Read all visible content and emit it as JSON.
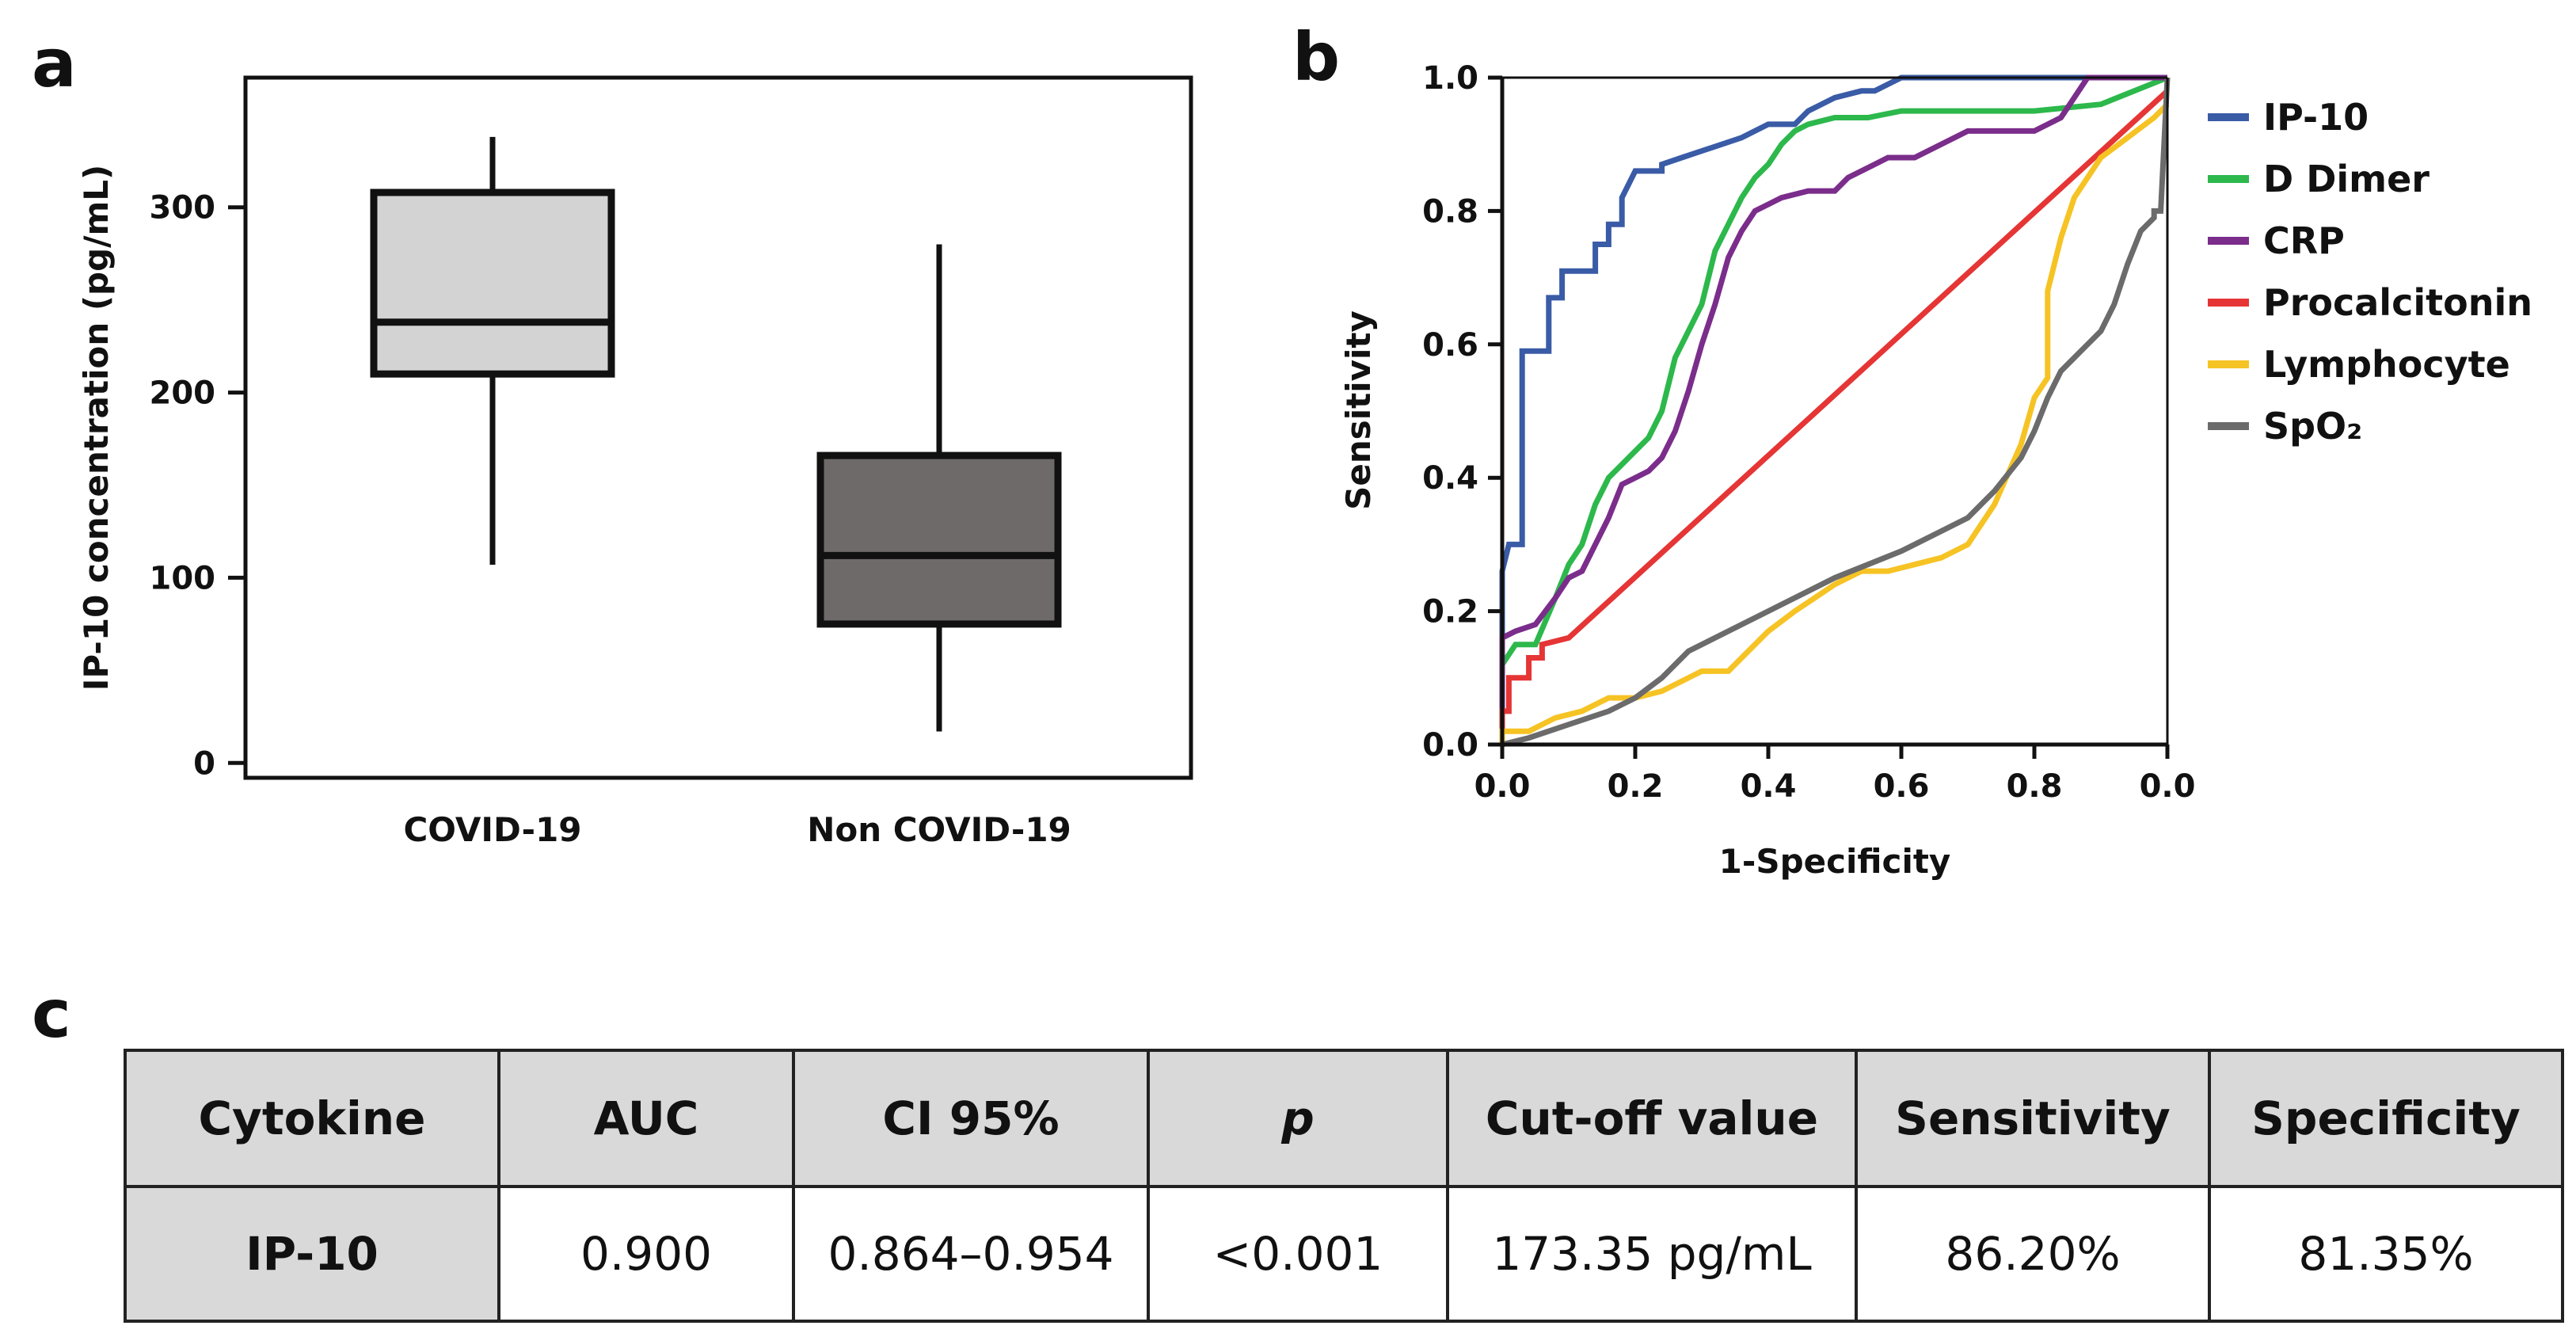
{
  "panels": {
    "a": "a",
    "b": "b",
    "c": "c"
  },
  "chart_data": [
    {
      "id": "a",
      "type": "box",
      "title": "",
      "xlabel": "",
      "ylabel": "IP-10 concentration (pg/mL)",
      "ylim": [
        -8,
        370
      ],
      "yticks": [
        0,
        100,
        200,
        300
      ],
      "categories": [
        "COVID-19",
        "Non COVID-19"
      ],
      "boxes": [
        {
          "name": "COVID-19",
          "whisker_low": 107,
          "q1": 210,
          "median": 238,
          "q3": 308,
          "whisker_high": 338,
          "color": "#d3d3d3"
        },
        {
          "name": "Non COVID-19",
          "whisker_low": 17,
          "q1": 75,
          "median": 112,
          "q3": 166,
          "whisker_high": 280,
          "color": "#6f6a6a"
        }
      ]
    },
    {
      "id": "b",
      "type": "line",
      "title": "",
      "xlabel": "1-Specificity",
      "ylabel": "Sensitivity",
      "xlim": [
        0,
        1
      ],
      "ylim": [
        0,
        1
      ],
      "xtick_labels": [
        "0.0",
        "0.2",
        "0.4",
        "0.6",
        "0.8",
        "0.0"
      ],
      "ytick_labels": [
        "0.0",
        "0.2",
        "0.4",
        "0.6",
        "0.8",
        "1.0"
      ],
      "legend_position": "right",
      "series": [
        {
          "name": "IP-10",
          "color": "#3a5ba6",
          "x": [
            0.0,
            0.0,
            0.01,
            0.03,
            0.03,
            0.07,
            0.07,
            0.09,
            0.09,
            0.12,
            0.14,
            0.14,
            0.16,
            0.16,
            0.18,
            0.18,
            0.2,
            0.24,
            0.24,
            0.27,
            0.3,
            0.36,
            0.4,
            0.44,
            0.46,
            0.48,
            0.5,
            0.54,
            0.56,
            0.58,
            0.6,
            0.62,
            0.7,
            0.85,
            1.0
          ],
          "y": [
            0.0,
            0.26,
            0.3,
            0.3,
            0.59,
            0.59,
            0.67,
            0.67,
            0.71,
            0.71,
            0.71,
            0.75,
            0.75,
            0.78,
            0.78,
            0.82,
            0.86,
            0.86,
            0.87,
            0.88,
            0.89,
            0.91,
            0.93,
            0.93,
            0.95,
            0.96,
            0.97,
            0.98,
            0.98,
            0.99,
            1.0,
            1.0,
            1.0,
            1.0,
            1.0
          ]
        },
        {
          "name": "D Dimer",
          "color": "#2db84c",
          "x": [
            0.0,
            0.0,
            0.02,
            0.05,
            0.08,
            0.1,
            0.12,
            0.14,
            0.16,
            0.18,
            0.2,
            0.22,
            0.24,
            0.26,
            0.28,
            0.3,
            0.32,
            0.34,
            0.36,
            0.38,
            0.4,
            0.42,
            0.44,
            0.46,
            0.5,
            0.55,
            0.6,
            0.7,
            0.8,
            0.9,
            1.0
          ],
          "y": [
            0.0,
            0.12,
            0.15,
            0.15,
            0.22,
            0.27,
            0.3,
            0.36,
            0.4,
            0.42,
            0.44,
            0.46,
            0.5,
            0.58,
            0.62,
            0.66,
            0.74,
            0.78,
            0.82,
            0.85,
            0.87,
            0.9,
            0.92,
            0.93,
            0.94,
            0.94,
            0.95,
            0.95,
            0.95,
            0.96,
            1.0
          ]
        },
        {
          "name": "CRP",
          "color": "#7b2d8b",
          "x": [
            0.0,
            0.0,
            0.02,
            0.05,
            0.08,
            0.1,
            0.12,
            0.14,
            0.16,
            0.18,
            0.2,
            0.22,
            0.24,
            0.26,
            0.28,
            0.3,
            0.32,
            0.34,
            0.36,
            0.38,
            0.4,
            0.42,
            0.46,
            0.5,
            0.52,
            0.54,
            0.56,
            0.58,
            0.62,
            0.7,
            0.8,
            0.84,
            0.88,
            1.0
          ],
          "y": [
            0.0,
            0.16,
            0.17,
            0.18,
            0.22,
            0.25,
            0.26,
            0.3,
            0.34,
            0.39,
            0.4,
            0.41,
            0.43,
            0.47,
            0.53,
            0.6,
            0.66,
            0.73,
            0.77,
            0.8,
            0.81,
            0.82,
            0.83,
            0.83,
            0.85,
            0.86,
            0.87,
            0.88,
            0.88,
            0.92,
            0.92,
            0.94,
            1.0,
            1.0
          ]
        },
        {
          "name": "Procalcitonin",
          "color": "#e53535",
          "x": [
            0.0,
            0.0,
            0.01,
            0.01,
            0.04,
            0.04,
            0.06,
            0.06,
            0.1,
            1.0
          ],
          "y": [
            0.0,
            0.05,
            0.05,
            0.1,
            0.1,
            0.13,
            0.13,
            0.15,
            0.16,
            0.98
          ]
        },
        {
          "name": "Lymphocyte",
          "color": "#f6c324",
          "x": [
            0.0,
            0.0,
            0.04,
            0.08,
            0.12,
            0.16,
            0.2,
            0.24,
            0.3,
            0.34,
            0.36,
            0.4,
            0.44,
            0.5,
            0.54,
            0.58,
            0.62,
            0.66,
            0.7,
            0.74,
            0.78,
            0.8,
            0.82,
            0.82,
            0.84,
            0.86,
            0.88,
            0.9,
            0.94,
            0.98,
            1.0
          ],
          "y": [
            0.0,
            0.02,
            0.02,
            0.04,
            0.05,
            0.07,
            0.07,
            0.08,
            0.11,
            0.11,
            0.13,
            0.17,
            0.2,
            0.24,
            0.26,
            0.26,
            0.27,
            0.28,
            0.3,
            0.36,
            0.45,
            0.52,
            0.55,
            0.68,
            0.76,
            0.82,
            0.85,
            0.88,
            0.91,
            0.94,
            0.96
          ]
        },
        {
          "name": "SpO₂",
          "color": "#6b6b6b",
          "x": [
            0.0,
            0.04,
            0.1,
            0.16,
            0.2,
            0.24,
            0.28,
            0.32,
            0.4,
            0.5,
            0.6,
            0.66,
            0.7,
            0.74,
            0.78,
            0.8,
            0.82,
            0.84,
            0.86,
            0.88,
            0.9,
            0.92,
            0.94,
            0.96,
            0.98,
            0.98,
            0.99,
            1.0
          ],
          "y": [
            0.0,
            0.01,
            0.03,
            0.05,
            0.07,
            0.1,
            0.14,
            0.16,
            0.2,
            0.25,
            0.29,
            0.32,
            0.34,
            0.38,
            0.43,
            0.47,
            0.52,
            0.56,
            0.58,
            0.6,
            0.62,
            0.66,
            0.72,
            0.77,
            0.79,
            0.8,
            0.8,
            1.0
          ]
        }
      ]
    },
    {
      "id": "c",
      "type": "table",
      "columns": [
        "Cytokine",
        "AUC",
        "CI 95%",
        "p",
        "Cut-off value",
        "Sensitivity",
        "Specificity"
      ],
      "rows": [
        [
          "IP-10",
          "0.900",
          "0.864–0.954",
          "<0.001",
          "173.35 pg/mL",
          "86.20%",
          "81.35%"
        ]
      ]
    }
  ]
}
